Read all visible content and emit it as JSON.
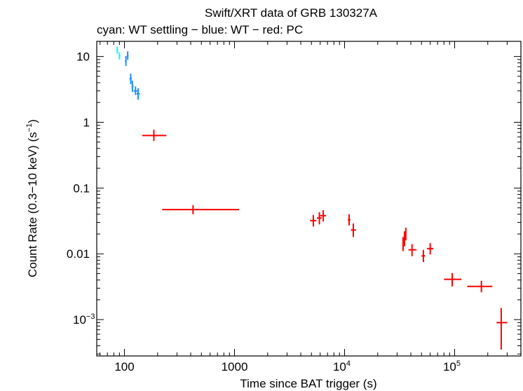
{
  "chart_data": {
    "type": "scatter",
    "title": "Swift/XRT data of GRB 130327A",
    "subtitle": "cyan: WT settling − blue: WT − red: PC",
    "xlabel": "Time since BAT trigger (s)",
    "ylabel_main": "Count Rate (0.3−10 keV) (s",
    "ylabel_exp": "−1",
    "ylabel_close": ")",
    "x_scale": "log",
    "y_scale": "log",
    "xlim": [
      56,
      400000
    ],
    "ylim": [
      0.00028,
      17
    ],
    "grid": false,
    "colors": {
      "wt_settling": "#00ffff",
      "wt": "#1e90ff",
      "pc": "#ff0000",
      "axis": "#000000"
    },
    "x_ticks": [
      {
        "value": 100,
        "base": "100",
        "exp": ""
      },
      {
        "value": 1000,
        "base": "1000",
        "exp": ""
      },
      {
        "value": 10000,
        "base": "10",
        "exp": "4"
      },
      {
        "value": 100000,
        "base": "10",
        "exp": "5"
      }
    ],
    "y_ticks": [
      {
        "value": 10,
        "base": "10",
        "exp": ""
      },
      {
        "value": 1,
        "base": "1",
        "exp": ""
      },
      {
        "value": 0.1,
        "base": "0.1",
        "exp": ""
      },
      {
        "value": 0.01,
        "base": "0.01",
        "exp": ""
      },
      {
        "value": 0.001,
        "base": "10",
        "exp": "−3"
      }
    ],
    "series": [
      {
        "name": "WT settling",
        "color": "#00ffff",
        "points": [
          {
            "x": 86,
            "xlo": 84.5,
            "xhi": 87.5,
            "y": 12.5,
            "ylo": 11.0,
            "yhi": 14.0
          },
          {
            "x": 90,
            "xlo": 88.5,
            "xhi": 91.5,
            "y": 10.3,
            "ylo": 9.0,
            "yhi": 11.6
          }
        ]
      },
      {
        "name": "WT",
        "color": "#1e90ff",
        "points": [
          {
            "x": 103,
            "xlo": 101,
            "xhi": 105,
            "y": 8.5,
            "ylo": 7.2,
            "yhi": 10.2
          },
          {
            "x": 107,
            "xlo": 105,
            "xhi": 109,
            "y": 10.2,
            "ylo": 8.9,
            "yhi": 12.0
          },
          {
            "x": 114,
            "xlo": 111,
            "xhi": 117,
            "y": 4.6,
            "ylo": 3.8,
            "yhi": 5.5
          },
          {
            "x": 118,
            "xlo": 116,
            "xhi": 121,
            "y": 3.5,
            "ylo": 2.9,
            "yhi": 4.3
          },
          {
            "x": 126,
            "xlo": 121,
            "xhi": 131,
            "y": 3.0,
            "ylo": 2.6,
            "yhi": 3.5
          },
          {
            "x": 133,
            "xlo": 129,
            "xhi": 138,
            "y": 2.7,
            "ylo": 2.2,
            "yhi": 3.3
          }
        ]
      },
      {
        "name": "PC",
        "color": "#ff0000",
        "points": [
          {
            "x": 185,
            "xlo": 145,
            "xhi": 240,
            "y": 0.63,
            "ylo": 0.52,
            "yhi": 0.77
          },
          {
            "x": 420,
            "xlo": 220,
            "xhi": 1100,
            "y": 0.047,
            "ylo": 0.04,
            "yhi": 0.055
          },
          {
            "x": 5200,
            "xlo": 4850,
            "xhi": 5550,
            "y": 0.032,
            "ylo": 0.026,
            "yhi": 0.039
          },
          {
            "x": 5900,
            "xlo": 5600,
            "xhi": 6200,
            "y": 0.035,
            "ylo": 0.028,
            "yhi": 0.043
          },
          {
            "x": 6400,
            "xlo": 6000,
            "xhi": 6800,
            "y": 0.038,
            "ylo": 0.031,
            "yhi": 0.046
          },
          {
            "x": 11000,
            "xlo": 10700,
            "xhi": 11300,
            "y": 0.033,
            "ylo": 0.027,
            "yhi": 0.04
          },
          {
            "x": 12000,
            "xlo": 11400,
            "xhi": 12700,
            "y": 0.023,
            "ylo": 0.018,
            "yhi": 0.029
          },
          {
            "x": 34000,
            "xlo": 33500,
            "xhi": 34500,
            "y": 0.014,
            "ylo": 0.011,
            "yhi": 0.018
          },
          {
            "x": 35000,
            "xlo": 34500,
            "xhi": 35500,
            "y": 0.017,
            "ylo": 0.013,
            "yhi": 0.022
          },
          {
            "x": 36000,
            "xlo": 35500,
            "xhi": 36500,
            "y": 0.02,
            "ylo": 0.016,
            "yhi": 0.025
          },
          {
            "x": 41000,
            "xlo": 38000,
            "xhi": 45000,
            "y": 0.0115,
            "ylo": 0.0092,
            "yhi": 0.014
          },
          {
            "x": 52000,
            "xlo": 50000,
            "xhi": 54000,
            "y": 0.0093,
            "ylo": 0.0075,
            "yhi": 0.0115
          },
          {
            "x": 60000,
            "xlo": 56000,
            "xhi": 64000,
            "y": 0.012,
            "ylo": 0.0098,
            "yhi": 0.0145
          },
          {
            "x": 95000,
            "xlo": 80000,
            "xhi": 115000,
            "y": 0.0041,
            "ylo": 0.0032,
            "yhi": 0.0051
          },
          {
            "x": 175000,
            "xlo": 130000,
            "xhi": 220000,
            "y": 0.0032,
            "ylo": 0.0026,
            "yhi": 0.0039
          },
          {
            "x": 265000,
            "xlo": 240000,
            "xhi": 300000,
            "y": 0.0009,
            "ylo": 0.00035,
            "yhi": 0.0015
          }
        ]
      }
    ]
  }
}
